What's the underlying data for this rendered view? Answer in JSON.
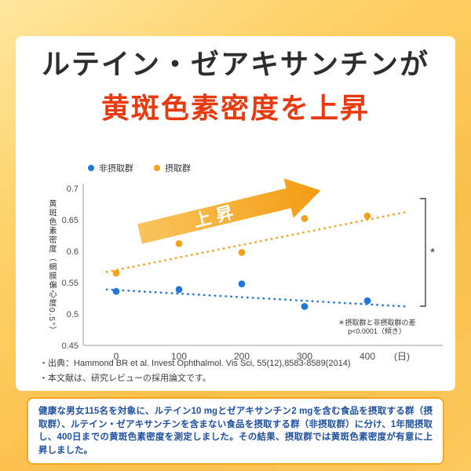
{
  "title": {
    "line1": "ルテイン・ゼアキサンチンが",
    "line2": "黄斑色素密度を上昇"
  },
  "legend": {
    "items": [
      {
        "label": "非摂取群",
        "color": "#2176d9"
      },
      {
        "label": "摂取群",
        "color": "#f5a11d"
      }
    ]
  },
  "chart_data": {
    "type": "scatter",
    "x": [
      0,
      100,
      200,
      300,
      400
    ],
    "xlabel": "(日)",
    "ylabel": "黄斑色素密度（網膜偏心度0.5°）",
    "ylim": [
      0.45,
      0.7
    ],
    "yticks": [
      0.7,
      0.65,
      0.6,
      0.55,
      0.5,
      0.45
    ],
    "grid": false,
    "legend_position": "top",
    "series": [
      {
        "name": "非摂取群",
        "color": "#2176d9",
        "values": [
          0.536,
          0.539,
          0.548,
          0.512,
          0.521
        ],
        "trend": {
          "days": [
            -15,
            460
          ],
          "values": [
            0.539,
            0.512
          ]
        }
      },
      {
        "name": "摂取群",
        "color": "#f5a11d",
        "values": [
          0.565,
          0.612,
          0.598,
          0.652,
          0.656
        ],
        "trend": {
          "days": [
            -15,
            460
          ],
          "values": [
            0.567,
            0.662
          ]
        }
      }
    ],
    "annotation": {
      "label": "上昇",
      "color_from": "#f9c45c",
      "color_to": "#f39c12"
    },
    "significance": {
      "marker": "*",
      "note_line1": "＊摂取群と非摂取群の差",
      "note_line2": "p<0.0001（傾き）"
    }
  },
  "citation": {
    "line1": "・出典：Hammond BR et al. Invest Ophthalmol. Vis Sci, 55(12),8583-8589(2014)",
    "line2": "・本文献は、研究レビューの採用論文です。"
  },
  "study_box": {
    "text": "健康な男女115名を対象に、ルテイン10 mgとゼアキサンチン2 mgを含む食品を摂取する群（摂取群）、ルテイン・ゼアキサンチンを含まない食品を摂取する群（非摂取群）に分け、1年間摂取し、400日までの黄斑色素密度を測定しました。その結果、摂取群では黄斑色素密度が有意に上昇しました。"
  },
  "colors": {
    "accent_red": "#e83a0e",
    "orange": "#f5a11d",
    "blue": "#2176d9",
    "box_text_blue": "#1d50a2"
  }
}
